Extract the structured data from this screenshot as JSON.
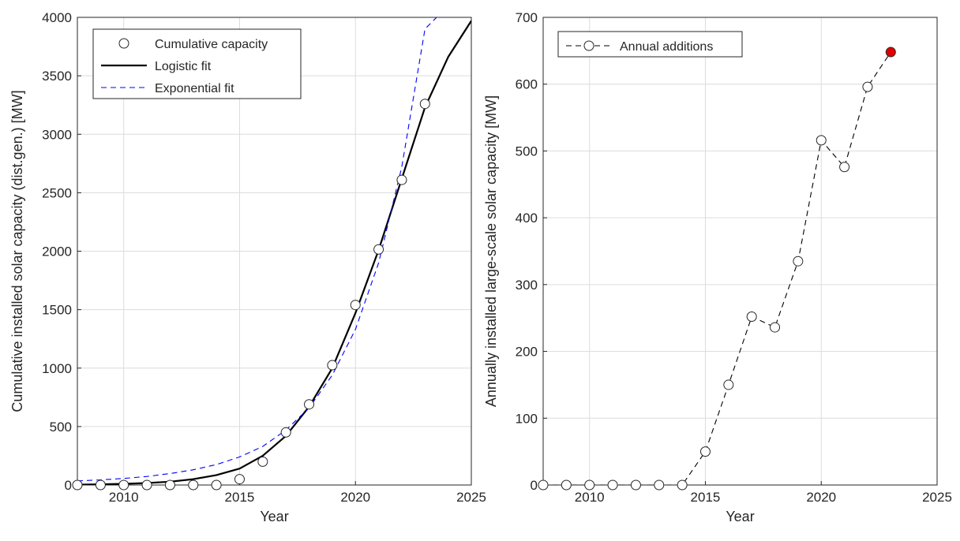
{
  "chart_data": [
    {
      "type": "scatter",
      "xlabel": "Year",
      "ylabel": "Cumulative installed solar capacity (dist.gen.) [MW]",
      "xlim": [
        2008,
        2025
      ],
      "ylim": [
        0,
        4000
      ],
      "xticks": [
        2010,
        2015,
        2020,
        2025
      ],
      "yticks": [
        0,
        500,
        1000,
        1500,
        2000,
        2500,
        3000,
        3500,
        4000
      ],
      "grid": true,
      "legend_position": "top-left",
      "colors": {
        "points": "#000000",
        "logistic": "#000000",
        "exponential": "#0000ff"
      },
      "series": [
        {
          "name": "Cumulative capacity",
          "style": "markers",
          "x": [
            2008,
            2009,
            2010,
            2011,
            2012,
            2013,
            2014,
            2015,
            2016,
            2017,
            2018,
            2019,
            2020,
            2021,
            2022,
            2023
          ],
          "y": [
            0,
            0,
            0,
            0,
            0,
            0,
            0,
            50,
            200,
            450,
            690,
            1025,
            1540,
            2015,
            2610,
            3260
          ]
        },
        {
          "name": "Logistic fit",
          "style": "solid-line",
          "x": [
            2008,
            2009,
            2010,
            2011,
            2012,
            2013,
            2014,
            2015,
            2016,
            2017,
            2018,
            2019,
            2020,
            2021,
            2022,
            2023,
            2024,
            2025
          ],
          "y": [
            3,
            6,
            10,
            17,
            28,
            50,
            85,
            140,
            250,
            420,
            670,
            1000,
            1470,
            2010,
            2620,
            3230,
            3660,
            3970
          ]
        },
        {
          "name": "Exponential fit",
          "style": "dashed-line",
          "x": [
            2008,
            2009,
            2010,
            2011,
            2012,
            2013,
            2014,
            2015,
            2016,
            2017,
            2018,
            2019,
            2020,
            2021,
            2022,
            2023,
            2023.5
          ],
          "y": [
            35,
            44,
            56,
            73,
            98,
            130,
            175,
            240,
            330,
            470,
            660,
            940,
            1330,
            1900,
            2720,
            3900,
            4000
          ]
        }
      ]
    },
    {
      "type": "line",
      "xlabel": "Year",
      "ylabel": "Annually installed large-scale solar capacity [MW]",
      "xlim": [
        2008,
        2025
      ],
      "ylim": [
        0,
        700
      ],
      "xticks": [
        2010,
        2015,
        2020,
        2025
      ],
      "yticks": [
        0,
        100,
        200,
        300,
        400,
        500,
        600,
        700
      ],
      "grid": true,
      "legend_position": "top-left",
      "colors": {
        "line": "#000000",
        "highlight": "#e00000"
      },
      "series": [
        {
          "name": "Annual additions",
          "style": "dashed-line-markers",
          "x": [
            2008,
            2009,
            2010,
            2011,
            2012,
            2013,
            2014,
            2015,
            2016,
            2017,
            2018,
            2019,
            2020,
            2021,
            2022,
            2023
          ],
          "y": [
            0,
            0,
            0,
            0,
            0,
            0,
            0,
            50,
            150,
            252,
            236,
            335,
            516,
            476,
            596,
            648
          ],
          "highlighted_point_index": 15
        }
      ]
    }
  ]
}
